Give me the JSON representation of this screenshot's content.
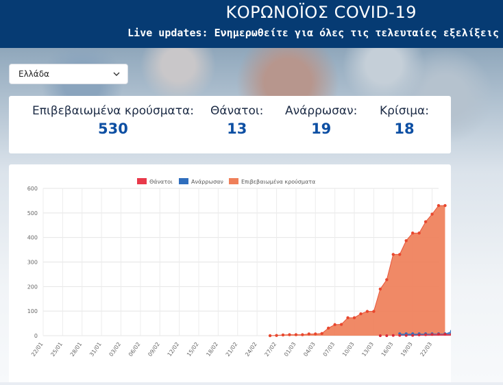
{
  "header": {
    "title": "ΚΟΡΩΝΟΪΟΣ COVID-19",
    "subtitle": "Live updates: Ενημερωθείτε για όλες τις τελευταίες εξελίξεις"
  },
  "country_select": {
    "selected": "Ελλάδα",
    "icon": "chevron-down-icon"
  },
  "stats": [
    {
      "label": "Επιβεβαιωμένα κρούσματα:",
      "value": "530"
    },
    {
      "label": "Θάνατοι:",
      "value": "13"
    },
    {
      "label": "Ανάρρωσαν:",
      "value": "19"
    },
    {
      "label": "Κρίσιμα:",
      "value": "18"
    }
  ],
  "chart_data": {
    "type": "area",
    "series": [
      {
        "name": "Θάνατοι",
        "color": "#e8394a"
      },
      {
        "name": "Ανάρρωσαν",
        "color": "#2f6ebd"
      },
      {
        "name": "Επιβεβαιωμένα κρούσματα",
        "color": "#ef7f59"
      }
    ],
    "y_ticks": [
      "0",
      "100",
      "200",
      "300",
      "400",
      "500",
      "600"
    ],
    "ylim": [
      0,
      600
    ],
    "x_tick_labels": [
      "22/01",
      "25/01",
      "28/01",
      "31/01",
      "03/02",
      "06/02",
      "09/02",
      "12/02",
      "15/02",
      "18/02",
      "21/02",
      "24/02",
      "27/02",
      "01/03",
      "04/03",
      "07/03",
      "10/03",
      "13/03",
      "16/03",
      "19/03",
      "22/03"
    ],
    "start_date": "22/01",
    "confirmed_start_day": 35,
    "confirmed": [
      0,
      1,
      3,
      4,
      4,
      4,
      7,
      7,
      9,
      31,
      45,
      46,
      73,
      73,
      89,
      99,
      99,
      190,
      228,
      331,
      331,
      387,
      418,
      418,
      464,
      495,
      530,
      530
    ],
    "deaths_start_day": 52,
    "deaths": [
      0,
      0,
      1,
      1,
      1,
      1,
      3,
      4,
      5,
      6,
      6,
      6,
      13,
      13
    ],
    "recovered_start_day": 55,
    "recovered": [
      8,
      8,
      8,
      8,
      8,
      8,
      8,
      8,
      19,
      19,
      19
    ]
  }
}
